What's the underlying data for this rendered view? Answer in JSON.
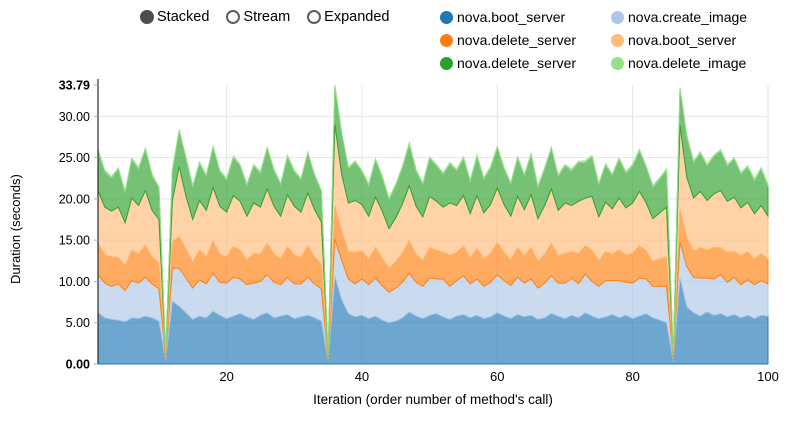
{
  "controls": {
    "options": [
      {
        "label": "Stacked",
        "selected": true
      },
      {
        "label": "Stream",
        "selected": false
      },
      {
        "label": "Expanded",
        "selected": false
      }
    ]
  },
  "legend": {
    "items": [
      {
        "label": "nova.boot_server",
        "color": "#1f77b4"
      },
      {
        "label": "nova.create_image",
        "color": "#aec7e8"
      },
      {
        "label": "nova.delete_server",
        "color": "#ff7f0e"
      },
      {
        "label": "nova.boot_server",
        "color": "#ffbb78"
      },
      {
        "label": "nova.delete_server",
        "color": "#2ca02c"
      },
      {
        "label": "nova.delete_image",
        "color": "#98df8a"
      }
    ]
  },
  "chart_data": {
    "type": "area",
    "stacked": true,
    "title": "",
    "xlabel": "Iteration (order number of method's call)",
    "ylabel": "Duration (seconds)",
    "x_range": [
      1,
      100
    ],
    "x_step": 1,
    "ylim": [
      0,
      33.79
    ],
    "grid": true,
    "grid_color": "#e5e5e5",
    "axis_color": "#2b2b2b",
    "legend_position": "top-right",
    "y_ticks": [
      {
        "value": 33.79,
        "label": "33.79",
        "bold": true
      },
      {
        "value": 30,
        "label": "30.00",
        "bold": false
      },
      {
        "value": 25,
        "label": "25.00",
        "bold": false
      },
      {
        "value": 20,
        "label": "20.00",
        "bold": false
      },
      {
        "value": 15,
        "label": "15.00",
        "bold": false
      },
      {
        "value": 10,
        "label": "10.00",
        "bold": false
      },
      {
        "value": 5,
        "label": "5.00",
        "bold": false
      },
      {
        "value": 0,
        "label": "0.00",
        "bold": true
      }
    ],
    "x_ticks": [
      {
        "value": 20,
        "label": "20"
      },
      {
        "value": 40,
        "label": "40"
      },
      {
        "value": 60,
        "label": "60"
      },
      {
        "value": 80,
        "label": "80"
      },
      {
        "value": 100,
        "label": "100"
      }
    ],
    "series": [
      {
        "name": "nova.boot_server",
        "color": "#1f77b4",
        "values": [
          6.2,
          5.6,
          5.4,
          5.3,
          5.1,
          5.6,
          5.5,
          5.8,
          5.6,
          5.2,
          0.4,
          7.6,
          7.0,
          6.2,
          5.4,
          5.8,
          5.6,
          6.4,
          5.9,
          5.5,
          5.8,
          6.1,
          5.7,
          5.4,
          5.9,
          6.2,
          5.6,
          5.8,
          6.0,
          5.5,
          5.7,
          5.9,
          5.6,
          5.2,
          0.3,
          10.6,
          7.8,
          6.1,
          5.7,
          5.9,
          5.5,
          5.8,
          5.3,
          5.0,
          5.2,
          5.6,
          6.3,
          5.8,
          5.5,
          5.9,
          6.1,
          5.7,
          5.4,
          5.8,
          6.0,
          5.6,
          5.9,
          5.5,
          5.7,
          6.2,
          5.8,
          5.5,
          6.0,
          5.7,
          5.9,
          5.4,
          5.6,
          6.1,
          5.8,
          5.5,
          5.9,
          5.6,
          6.2,
          5.8,
          5.5,
          5.7,
          6.0,
          5.6,
          5.9,
          5.5,
          5.8,
          6.1,
          5.6,
          5.3,
          5.0,
          0.3,
          10.4,
          6.9,
          6.2,
          5.8,
          6.3,
          5.9,
          6.1,
          5.7,
          6.0,
          5.6,
          5.9,
          5.5,
          5.9,
          5.8
        ]
      },
      {
        "name": "nova.create_image",
        "color": "#aec7e8",
        "values": [
          4.6,
          4.2,
          4.0,
          4.4,
          3.8,
          4.5,
          4.3,
          4.7,
          4.1,
          3.9,
          0.25,
          4.0,
          4.6,
          4.2,
          3.8,
          4.4,
          4.1,
          4.6,
          4.0,
          4.3,
          4.7,
          4.2,
          3.9,
          4.4,
          4.1,
          4.6,
          4.3,
          3.8,
          4.5,
          4.2,
          4.0,
          4.6,
          4.1,
          3.9,
          0.2,
          4.5,
          4.8,
          4.2,
          4.0,
          4.4,
          4.1,
          4.6,
          4.2,
          3.7,
          4.0,
          4.3,
          4.7,
          4.1,
          3.9,
          4.5,
          4.2,
          4.6,
          4.0,
          4.3,
          4.7,
          4.1,
          4.4,
          3.9,
          4.2,
          4.6,
          4.3,
          4.0,
          4.5,
          4.1,
          4.4,
          3.8,
          4.2,
          4.6,
          4.0,
          4.3,
          4.5,
          4.1,
          4.7,
          4.2,
          3.9,
          4.4,
          4.1,
          4.5,
          4.0,
          4.3,
          4.6,
          4.2,
          3.8,
          4.1,
          4.4,
          0.2,
          4.4,
          4.9,
          4.3,
          4.6,
          4.1,
          4.4,
          4.7,
          4.2,
          4.5,
          4.0,
          4.3,
          4.1,
          4.2,
          3.9
        ]
      },
      {
        "name": "nova.delete_server",
        "color": "#ff7f0e",
        "values": [
          3.8,
          3.4,
          3.6,
          3.2,
          3.0,
          3.7,
          3.5,
          3.9,
          3.3,
          3.1,
          0.15,
          3.2,
          3.8,
          3.5,
          3.1,
          3.6,
          3.3,
          3.9,
          3.4,
          3.2,
          3.7,
          3.5,
          3.0,
          3.6,
          3.3,
          3.8,
          3.4,
          3.1,
          3.7,
          3.5,
          3.2,
          3.8,
          3.3,
          3.0,
          0.15,
          4.0,
          3.6,
          3.3,
          3.8,
          3.4,
          3.1,
          3.7,
          3.3,
          2.9,
          3.2,
          3.6,
          3.9,
          3.4,
          3.1,
          3.7,
          3.5,
          3.2,
          3.8,
          3.4,
          3.6,
          3.1,
          3.7,
          3.3,
          3.5,
          3.9,
          3.4,
          3.1,
          3.6,
          3.3,
          3.8,
          3.2,
          3.5,
          3.9,
          3.3,
          3.6,
          3.2,
          3.7,
          3.4,
          3.8,
          3.1,
          3.5,
          3.2,
          3.7,
          3.3,
          3.6,
          3.9,
          3.4,
          3.0,
          3.3,
          3.6,
          0.15,
          3.9,
          3.5,
          3.2,
          3.7,
          3.4,
          3.8,
          3.3,
          3.6,
          3.1,
          3.5,
          3.4,
          3.1,
          3.3,
          3.0
        ]
      },
      {
        "name": "nova.boot_server",
        "color": "#ffbb78",
        "values": [
          6.4,
          5.8,
          5.5,
          6.1,
          5.2,
          6.3,
          5.9,
          6.6,
          5.6,
          5.3,
          0.25,
          5.0,
          8.5,
          6.4,
          5.2,
          6.0,
          5.6,
          6.5,
          5.8,
          5.4,
          6.2,
          5.9,
          5.3,
          6.1,
          5.7,
          6.6,
          5.8,
          5.2,
          6.3,
          5.9,
          5.5,
          6.4,
          5.7,
          5.1,
          0.2,
          9.9,
          6.8,
          5.9,
          6.3,
          5.6,
          5.2,
          6.1,
          5.7,
          4.8,
          5.3,
          5.9,
          6.7,
          5.8,
          5.3,
          6.2,
          5.9,
          5.5,
          6.3,
          5.7,
          6.1,
          5.4,
          6.4,
          5.6,
          5.9,
          6.6,
          5.8,
          5.3,
          6.2,
          5.6,
          6.4,
          5.2,
          5.9,
          6.6,
          5.5,
          6.1,
          5.6,
          6.3,
          5.8,
          6.5,
          5.3,
          6.0,
          5.5,
          6.3,
          5.7,
          6.1,
          6.6,
          5.8,
          5.2,
          5.6,
          6.0,
          0.2,
          10.2,
          7.3,
          6.4,
          6.8,
          6.0,
          6.5,
          6.9,
          6.2,
          6.6,
          5.8,
          6.0,
          5.5,
          5.8,
          5.2
        ]
      },
      {
        "name": "nova.delete_server",
        "color": "#2ca02c",
        "values": [
          4.8,
          4.3,
          4.0,
          4.6,
          3.6,
          4.7,
          4.4,
          5.0,
          4.2,
          3.8,
          0.15,
          3.6,
          4.3,
          4.6,
          3.9,
          4.5,
          4.1,
          4.8,
          4.2,
          3.9,
          4.6,
          4.3,
          3.7,
          4.5,
          4.1,
          4.9,
          4.3,
          3.8,
          4.6,
          4.2,
          3.9,
          4.8,
          4.1,
          3.7,
          0.15,
          4.6,
          4.9,
          4.2,
          4.6,
          4.0,
          3.7,
          4.5,
          4.1,
          3.5,
          3.9,
          4.4,
          5.0,
          4.3,
          3.9,
          4.6,
          4.3,
          4.0,
          4.7,
          4.2,
          4.5,
          3.9,
          4.7,
          4.1,
          4.4,
          4.9,
          4.3,
          3.9,
          4.6,
          4.1,
          4.8,
          3.8,
          4.4,
          4.9,
          4.1,
          4.5,
          4.2,
          4.7,
          4.3,
          4.8,
          3.9,
          4.5,
          4.0,
          4.7,
          4.2,
          4.5,
          4.9,
          4.3,
          3.8,
          4.1,
          4.4,
          0.15,
          4.4,
          4.9,
          4.3,
          4.6,
          4.2,
          4.5,
          4.8,
          4.3,
          4.6,
          4.1,
          4.2,
          4.0,
          4.4,
          3.6
        ]
      },
      {
        "name": "nova.delete_image",
        "color": "#98df8a",
        "values": [
          0.2,
          0.15,
          0.2,
          0.15,
          0.2,
          0.15,
          0.2,
          0.15,
          0.2,
          0.15,
          0.05,
          0.2,
          0.2,
          0.15,
          0.2,
          0.15,
          0.2,
          0.15,
          0.2,
          0.15,
          0.2,
          0.15,
          0.2,
          0.15,
          0.2,
          0.15,
          0.2,
          0.15,
          0.2,
          0.15,
          0.2,
          0.15,
          0.2,
          0.15,
          0.05,
          0.19,
          0.2,
          0.15,
          0.2,
          0.15,
          0.2,
          0.15,
          0.2,
          0.15,
          0.2,
          0.15,
          0.2,
          0.15,
          0.2,
          0.15,
          0.2,
          0.15,
          0.2,
          0.15,
          0.2,
          0.15,
          0.2,
          0.15,
          0.2,
          0.15,
          0.2,
          0.15,
          0.2,
          0.15,
          0.2,
          0.15,
          0.2,
          0.15,
          0.2,
          0.15,
          0.2,
          0.15,
          0.2,
          0.15,
          0.2,
          0.15,
          0.2,
          0.15,
          0.2,
          0.15,
          0.2,
          0.15,
          0.2,
          0.15,
          0.2,
          0.05,
          0.2,
          0.2,
          0.15,
          0.2,
          0.15,
          0.2,
          0.15,
          0.2,
          0.15,
          0.2,
          0.2,
          0.2,
          0.2,
          0.2
        ]
      }
    ]
  }
}
